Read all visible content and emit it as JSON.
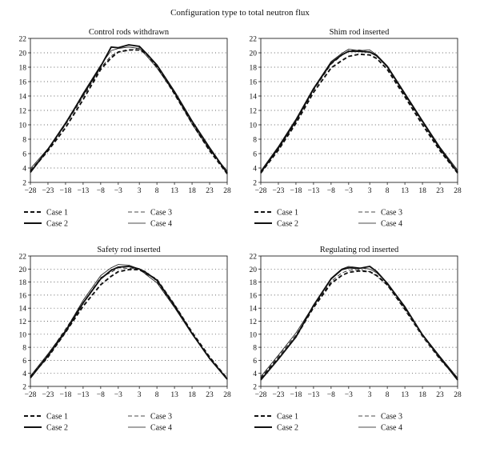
{
  "title": "Configuration type to total neutron flux",
  "chart_data": [
    {
      "type": "line",
      "title": "Control rods withdrawn",
      "xlim": [
        -28,
        28
      ],
      "ylim": [
        2,
        22
      ],
      "xticks": [
        -28,
        -23,
        -18,
        -13,
        -8,
        -3,
        3,
        8,
        13,
        18,
        23,
        28
      ],
      "yticks": [
        2,
        4,
        6,
        8,
        10,
        12,
        14,
        16,
        18,
        20,
        22
      ],
      "grid": "horizontal dotted",
      "legend": "below",
      "x": [
        -28,
        -23,
        -18,
        -13,
        -8,
        -5,
        -3,
        0,
        3,
        5,
        8,
        13,
        18,
        23,
        28
      ],
      "series": [
        {
          "name": "Case 1",
          "style": "dashed-thick",
          "values": [
            3.5,
            6.4,
            9.6,
            13.5,
            17.7,
            19.3,
            20.1,
            20.4,
            20.4,
            19.9,
            18.2,
            14.3,
            10.2,
            6.4,
            3.2
          ]
        },
        {
          "name": "Case 2",
          "style": "solid-thick",
          "values": [
            3.4,
            6.6,
            10.2,
            14.2,
            18.1,
            20.8,
            20.7,
            21.1,
            20.9,
            19.9,
            18.3,
            14.6,
            10.5,
            6.8,
            3.3
          ]
        },
        {
          "name": "Case 3",
          "style": "dashed-thin",
          "values": [
            3.7,
            6.5,
            10.0,
            13.9,
            17.9,
            19.6,
            20.1,
            20.3,
            20.7,
            19.8,
            18.0,
            14.3,
            10.3,
            6.6,
            3.1
          ]
        },
        {
          "name": "Case 4",
          "style": "solid-thin",
          "values": [
            3.9,
            6.7,
            10.1,
            14.4,
            18.3,
            20.3,
            20.6,
            20.8,
            20.6,
            19.6,
            17.9,
            14.4,
            10.1,
            6.5,
            3.6
          ]
        }
      ]
    },
    {
      "type": "line",
      "title": "Shim rod inserted",
      "xlim": [
        -28,
        28
      ],
      "ylim": [
        2,
        22
      ],
      "xticks": [
        -28,
        -23,
        -18,
        -13,
        -8,
        -3,
        3,
        8,
        13,
        18,
        23,
        28
      ],
      "yticks": [
        2,
        4,
        6,
        8,
        10,
        12,
        14,
        16,
        18,
        20,
        22
      ],
      "grid": "horizontal dotted",
      "legend": "below",
      "x": [
        -28,
        -23,
        -18,
        -13,
        -8,
        -5,
        -3,
        0,
        3,
        5,
        8,
        13,
        18,
        23,
        28
      ],
      "series": [
        {
          "name": "Case 1",
          "style": "dashed-thick",
          "values": [
            3.3,
            6.5,
            10.2,
            14.5,
            17.9,
            18.9,
            19.5,
            19.8,
            19.7,
            19.2,
            17.7,
            13.9,
            10.0,
            6.4,
            3.3
          ]
        },
        {
          "name": "Case 2",
          "style": "solid-thick",
          "values": [
            3.4,
            6.8,
            10.6,
            15.0,
            18.6,
            19.7,
            20.2,
            20.2,
            20.1,
            19.6,
            18.1,
            14.3,
            10.5,
            6.7,
            3.4
          ]
        },
        {
          "name": "Case 3",
          "style": "dashed-thin",
          "values": [
            3.5,
            6.6,
            10.4,
            14.8,
            18.4,
            19.6,
            20.3,
            20.4,
            20.1,
            19.5,
            18.0,
            14.1,
            10.3,
            6.6,
            3.5
          ]
        },
        {
          "name": "Case 4",
          "style": "solid-thin",
          "values": [
            3.6,
            7.0,
            10.8,
            15.1,
            18.8,
            19.9,
            20.5,
            20.3,
            20.4,
            19.7,
            18.2,
            14.4,
            10.6,
            6.9,
            3.7
          ]
        }
      ]
    },
    {
      "type": "line",
      "title": "Safety rod inserted",
      "xlim": [
        -28,
        28
      ],
      "ylim": [
        2,
        22
      ],
      "xticks": [
        -28,
        -23,
        -18,
        -13,
        -8,
        -3,
        3,
        8,
        13,
        18,
        23,
        28
      ],
      "yticks": [
        2,
        4,
        6,
        8,
        10,
        12,
        14,
        16,
        18,
        20,
        22
      ],
      "grid": "horizontal dotted",
      "legend": "below",
      "x": [
        -28,
        -23,
        -18,
        -13,
        -8,
        -5,
        -3,
        0,
        3,
        5,
        8,
        13,
        18,
        23,
        28
      ],
      "series": [
        {
          "name": "Case 1",
          "style": "dashed-thick",
          "values": [
            3.5,
            6.5,
            10.3,
            14.3,
            17.6,
            18.9,
            19.6,
            19.9,
            19.9,
            19.3,
            18.4,
            14.5,
            10.3,
            6.5,
            3.2
          ]
        },
        {
          "name": "Case 2",
          "style": "solid-thick",
          "values": [
            3.3,
            6.7,
            10.4,
            14.8,
            18.5,
            19.8,
            20.3,
            20.4,
            20.0,
            19.4,
            18.3,
            14.4,
            10.1,
            6.3,
            3.1
          ]
        },
        {
          "name": "Case 3",
          "style": "dashed-thin",
          "values": [
            3.4,
            6.9,
            10.8,
            14.9,
            18.7,
            19.5,
            20.2,
            20.1,
            20.0,
            19.6,
            18.1,
            14.2,
            10.0,
            6.4,
            3.1
          ]
        },
        {
          "name": "Case 4",
          "style": "solid-thin",
          "values": [
            3.6,
            7.0,
            10.6,
            15.2,
            19.0,
            20.2,
            20.7,
            20.6,
            20.0,
            19.1,
            17.9,
            14.1,
            10.0,
            6.4,
            3.2
          ]
        }
      ]
    },
    {
      "type": "line",
      "title": "Regulating rod inserted",
      "xlim": [
        -28,
        28
      ],
      "ylim": [
        2,
        22
      ],
      "xticks": [
        -28,
        -23,
        -18,
        -13,
        -8,
        -3,
        3,
        8,
        13,
        18,
        23,
        28
      ],
      "yticks": [
        2,
        4,
        6,
        8,
        10,
        12,
        14,
        16,
        18,
        20,
        22
      ],
      "grid": "horizontal dotted",
      "legend": "below",
      "x": [
        -28,
        -23,
        -18,
        -13,
        -8,
        -5,
        -3,
        0,
        3,
        5,
        8,
        13,
        18,
        23,
        28
      ],
      "series": [
        {
          "name": "Case 1",
          "style": "dashed-thick",
          "values": [
            3.2,
            6.3,
            9.6,
            14.1,
            17.8,
            19.0,
            19.5,
            19.7,
            19.6,
            19.0,
            17.6,
            13.9,
            9.9,
            6.3,
            3.2
          ]
        },
        {
          "name": "Case 2",
          "style": "solid-thick",
          "values": [
            3.0,
            6.2,
            9.6,
            14.4,
            18.5,
            19.9,
            20.2,
            20.1,
            20.4,
            19.6,
            17.8,
            14.2,
            9.9,
            6.4,
            3.0
          ]
        },
        {
          "name": "Case 3",
          "style": "dashed-thin",
          "values": [
            3.3,
            6.6,
            9.9,
            14.2,
            18.1,
            19.4,
            19.8,
            19.9,
            19.6,
            18.9,
            17.5,
            13.7,
            9.6,
            6.1,
            3.1
          ]
        },
        {
          "name": "Case 4",
          "style": "solid-thin",
          "values": [
            3.5,
            6.8,
            10.2,
            14.4,
            18.6,
            20.0,
            20.4,
            20.2,
            20.0,
            19.4,
            17.9,
            14.0,
            10.0,
            6.6,
            3.3
          ]
        }
      ]
    }
  ]
}
